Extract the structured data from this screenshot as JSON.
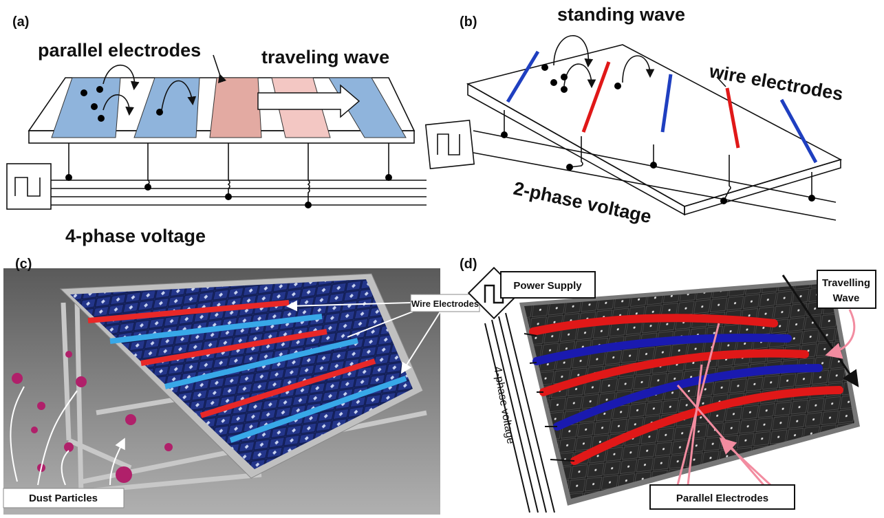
{
  "panels": [
    {
      "label": "(a)",
      "electrode_label": "parallel electrodes",
      "wave_label": "traveling wave",
      "voltage_label": "4-phase voltage"
    },
    {
      "label": "(b)",
      "wave_label": "standing wave",
      "electrode_label": "wire electrodes",
      "voltage_label": "2-phase voltage"
    },
    {
      "label": "(c)",
      "electrode_label": "Wire Electrodes",
      "particle_label": "Dust Particles"
    },
    {
      "label": "(d)",
      "supply_label": "Power Supply",
      "wave_label": [
        "Travelling",
        "Wave"
      ],
      "voltage_label": "4-phase voltage",
      "electrode_label": "Parallel Electrodes"
    }
  ]
}
